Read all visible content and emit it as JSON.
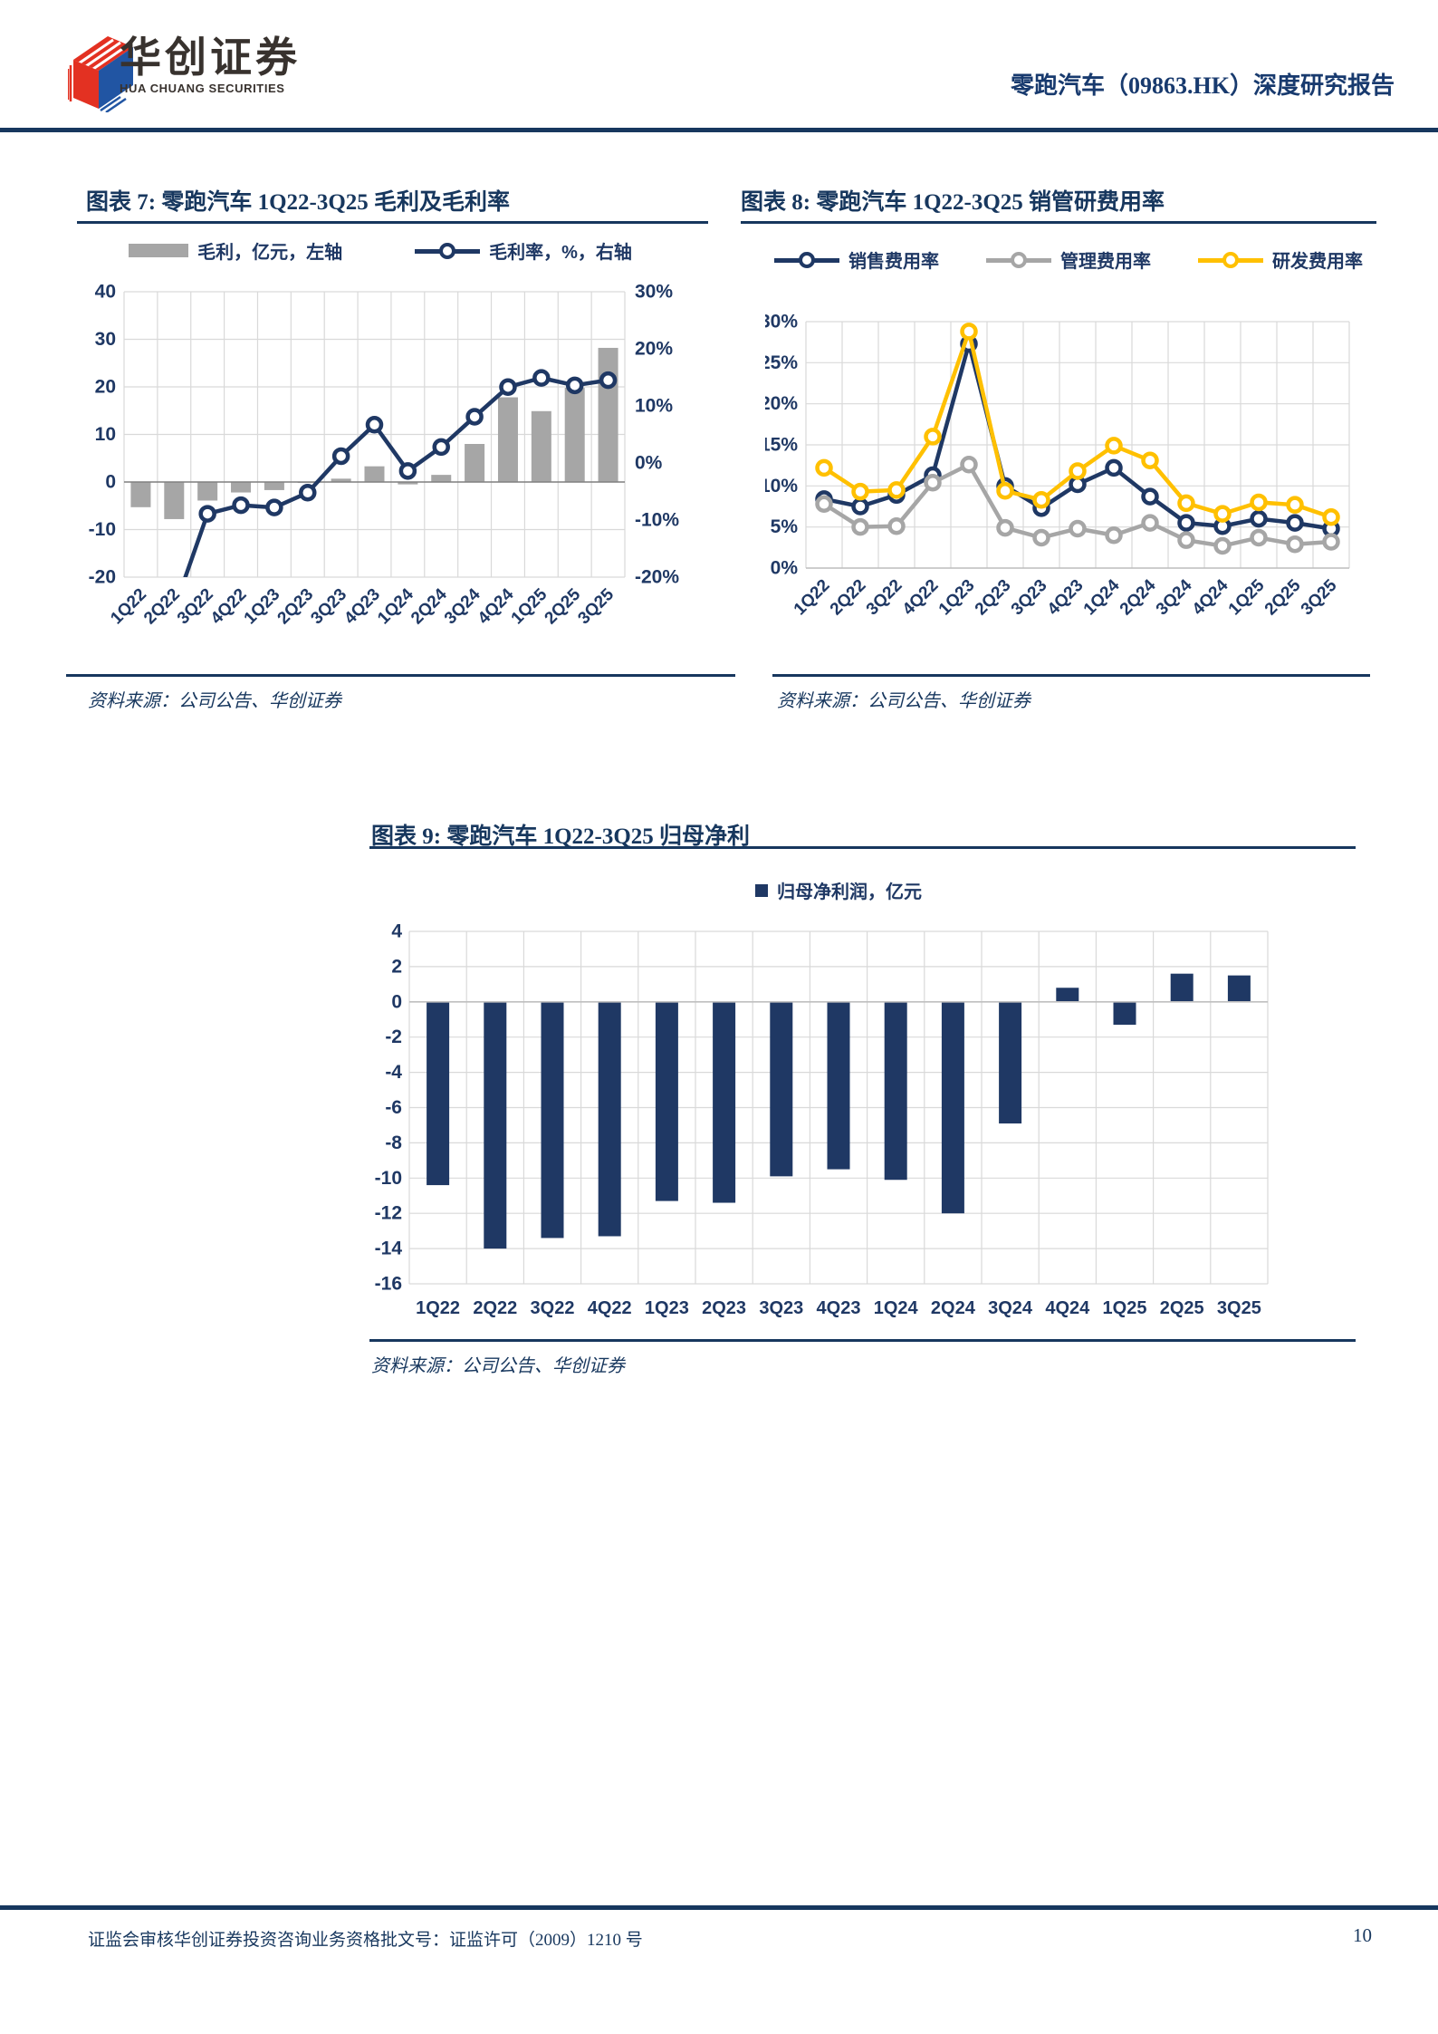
{
  "header": {
    "logo_cn": "华创证券",
    "logo_en": "HUA CHUANG SECURITIES",
    "report_title": "零跑汽车（09863.HK）深度研究报告"
  },
  "figures": {
    "fig7": {
      "title": "图表 7: 零跑汽车 1Q22-3Q25 毛利及毛利率",
      "source": "资料来源：公司公告、华创证券"
    },
    "fig8": {
      "title": "图表 8: 零跑汽车 1Q22-3Q25 销管研费用率",
      "source": "资料来源：公司公告、华创证券"
    },
    "fig9": {
      "title": "图表 9: 零跑汽车 1Q22-3Q25 归母净利",
      "source": "资料来源：公司公告、华创证券"
    }
  },
  "footer": {
    "license": "证监会审核华创证券投资咨询业务资格批文号：证监许可（2009）1210 号",
    "page_number": "10"
  },
  "colors": {
    "navy": "#1f3864",
    "gray": "#a6a6a6",
    "yellow": "#ffc000",
    "rule_navy": "#17375e",
    "grid": "#d9d9d9",
    "zero_axis": "#808080"
  },
  "chart_data": [
    {
      "id": "fig7",
      "type": "combo-bar-line",
      "categories": [
        "1Q22",
        "2Q22",
        "3Q22",
        "4Q22",
        "1Q23",
        "2Q23",
        "3Q23",
        "4Q23",
        "1Q24",
        "2Q24",
        "3Q24",
        "4Q24",
        "1Q25",
        "2Q25",
        "3Q25"
      ],
      "bar_series": {
        "name": "毛利，亿元，左轴",
        "color": "#a6a6a6",
        "axis": "left",
        "values": [
          -5.3,
          -7.8,
          -3.9,
          -2.2,
          -1.7,
          -0.2,
          0.7,
          3.3,
          -0.5,
          1.5,
          8.0,
          17.8,
          14.9,
          19.8,
          28.2
        ]
      },
      "line_series": {
        "name": "毛利率，%，右轴",
        "color": "#1f3864",
        "axis": "right",
        "values": [
          -26.6,
          -25.6,
          -8.9,
          -7.4,
          -7.8,
          -5.2,
          1.2,
          6.7,
          -1.4,
          2.8,
          8.1,
          13.3,
          14.9,
          13.6,
          14.5
        ]
      },
      "left_axis": {
        "min": -20,
        "max": 40,
        "step": 10,
        "suffix": ""
      },
      "right_axis": {
        "min": -20,
        "max": 30,
        "step": 10,
        "suffix": "%"
      },
      "grid": true,
      "legend_position": "top"
    },
    {
      "id": "fig8",
      "type": "line",
      "categories": [
        "1Q22",
        "2Q22",
        "3Q22",
        "4Q22",
        "1Q23",
        "2Q23",
        "3Q23",
        "4Q23",
        "1Q24",
        "2Q24",
        "3Q24",
        "4Q24",
        "1Q25",
        "2Q25",
        "3Q25"
      ],
      "series": [
        {
          "name": "销售费用率",
          "color": "#1f3864",
          "values": [
            8.4,
            7.5,
            8.9,
            11.3,
            27.3,
            10.0,
            7.3,
            10.2,
            12.2,
            8.7,
            5.5,
            5.1,
            6.0,
            5.5,
            4.8
          ]
        },
        {
          "name": "管理费用率",
          "color": "#a6a6a6",
          "values": [
            7.8,
            5.0,
            5.1,
            10.4,
            12.6,
            4.9,
            3.7,
            4.8,
            4.0,
            5.5,
            3.4,
            2.7,
            3.7,
            2.9,
            3.2
          ]
        },
        {
          "name": "研发费用率",
          "color": "#ffc000",
          "values": [
            12.2,
            9.3,
            9.5,
            16.0,
            28.8,
            9.4,
            8.3,
            11.8,
            14.9,
            13.1,
            7.9,
            6.6,
            8.0,
            7.7,
            6.2
          ]
        }
      ],
      "y_axis": {
        "min": 0,
        "max": 30,
        "step": 5,
        "suffix": "%"
      },
      "grid": true,
      "legend_position": "top"
    },
    {
      "id": "fig9",
      "type": "bar",
      "categories": [
        "1Q22",
        "2Q22",
        "3Q22",
        "4Q22",
        "1Q23",
        "2Q23",
        "3Q23",
        "4Q23",
        "1Q24",
        "2Q24",
        "3Q24",
        "4Q24",
        "1Q25",
        "2Q25",
        "3Q25"
      ],
      "series": [
        {
          "name": "归母净利润，亿元",
          "color": "#1f3864",
          "values": [
            -10.4,
            -14.0,
            -13.4,
            -13.3,
            -11.3,
            -11.4,
            -9.9,
            -9.5,
            -10.1,
            -12.0,
            -6.9,
            0.8,
            -1.3,
            1.6,
            1.5
          ]
        }
      ],
      "y_axis": {
        "min": -16,
        "max": 4,
        "step": 2,
        "suffix": ""
      },
      "grid": true,
      "legend_position": "top"
    }
  ]
}
